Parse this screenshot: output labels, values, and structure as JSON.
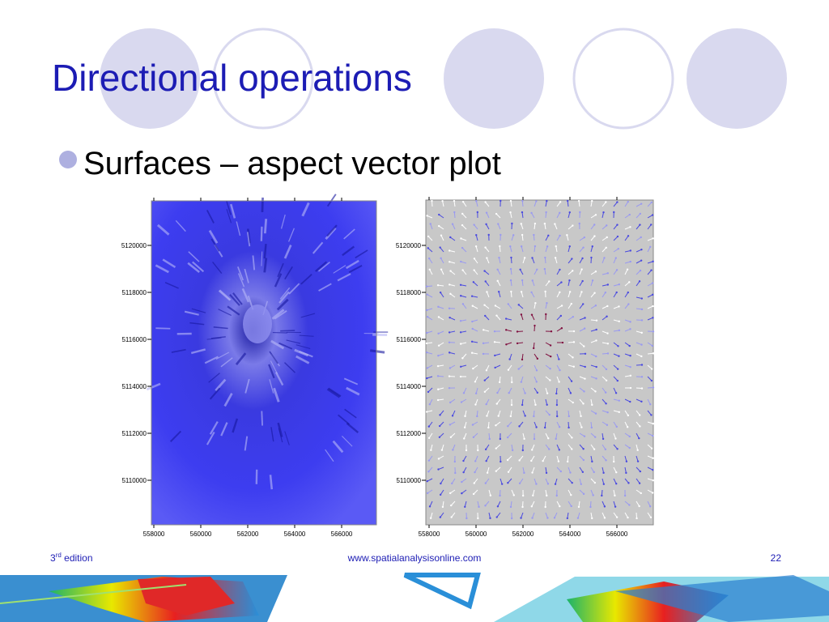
{
  "slide": {
    "title": "Directional operations",
    "bullet": "Surfaces – aspect vector plot",
    "left_map": {
      "yticks": [
        "5120000",
        "5118000",
        "5116000",
        "5114000",
        "5112000",
        "5110000"
      ],
      "xticks": [
        "558000",
        "560000",
        "562000",
        "564000",
        "566000"
      ]
    },
    "right_map": {
      "yticks": [
        "5120000",
        "5118000",
        "5116000",
        "5114000",
        "5112000",
        "5110000"
      ],
      "xticks": [
        "558000",
        "560000",
        "562000",
        "564000",
        "566000"
      ]
    },
    "footer": {
      "edition_number": "3",
      "edition_suffix": "rd",
      "edition_word": "edition",
      "url": "www.spatialanalysisonline.com",
      "page": "22"
    }
  }
}
